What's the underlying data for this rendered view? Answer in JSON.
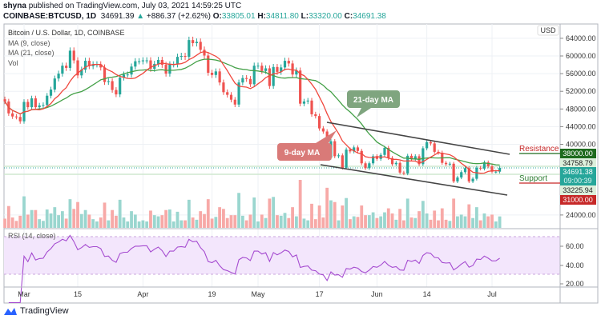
{
  "header": {
    "author": "shyna",
    "published_text": "published on TradingView.com, July 03, 2021 14:59:25 UTC",
    "symbol": "COINBASE:BTCUSD, 1D",
    "last": "34691.39",
    "change": "+886.37 (+2.62%)",
    "o_label": "O:",
    "o": "33805.01",
    "h_label": "H:",
    "h": "34811.80",
    "l_label": "L:",
    "l": "33320.00",
    "c_label": "C:",
    "c": "34691.38"
  },
  "legend": {
    "title": "Bitcoin / U.S. Dollar, 1D, COINBASE",
    "ma9": "MA (9, close)",
    "ma21": "MA (21, close)",
    "vol": "Vol"
  },
  "annotations": {
    "ma21": "21-day MA",
    "ma9": "9-day MA",
    "resistance": "Resistance",
    "support": "Support"
  },
  "price_labels": {
    "currency": "USD",
    "resistance_level": "38000.00",
    "ma21_value": "34758.79",
    "last_price": "34691.38",
    "countdown": "09:00:39",
    "ma9_value": "33225.94",
    "support_level": "31000.00"
  },
  "rsi": {
    "title": "RSI (14, close)",
    "ticks": [
      "60.00",
      "40.00",
      "20.00"
    ]
  },
  "brand": "TradingView",
  "colors": {
    "up": "#26a69a",
    "down": "#ef5350",
    "ma9": "#f0483e",
    "ma21": "#43a047",
    "rsi": "#a54bd0",
    "resistance": "#1e6b1e",
    "support": "#c62828"
  },
  "chart_data": {
    "type": "candlestick",
    "title": "Bitcoin / U.S. Dollar, 1D, COINBASE",
    "start_date": "2021-02-24",
    "end_date": "2021-07-03",
    "y_ticks": [
      64000,
      60000,
      56000,
      52000,
      48000,
      44000,
      40000,
      24000
    ],
    "x_ticks": [
      "Mar",
      "15",
      "Apr",
      "19",
      "May",
      "17",
      "Jun",
      "14",
      "Jul"
    ],
    "x_tick_dates": [
      "2021-03-01",
      "2021-03-15",
      "2021-04-01",
      "2021-04-19",
      "2021-05-01",
      "2021-05-17",
      "2021-06-01",
      "2021-06-14",
      "2021-07-01"
    ],
    "ylim": [
      22000,
      66000
    ],
    "grid": true,
    "closes": [
      49700,
      47000,
      46300,
      46200,
      45200,
      49600,
      48400,
      50400,
      48400,
      48800,
      48900,
      51000,
      52400,
      54900,
      56000,
      57800,
      57300,
      61200,
      59000,
      55600,
      56900,
      58900,
      57700,
      58100,
      58100,
      57400,
      54100,
      54300,
      52300,
      51300,
      55100,
      55800,
      55800,
      57600,
      58800,
      58800,
      59000,
      59000,
      57100,
      58200,
      59100,
      58000,
      56000,
      58100,
      58100,
      59800,
      60000,
      59800,
      63600,
      62900,
      63200,
      61400,
      60100,
      56200,
      55700,
      56500,
      54000,
      51800,
      51200,
      50100,
      49000,
      54000,
      55000,
      54800,
      53600,
      57800,
      57800,
      56600,
      57200,
      53200,
      57500,
      56400,
      57400,
      58900,
      58300,
      55800,
      56700,
      49200,
      49700,
      49900,
      46800,
      46400,
      43600,
      42900,
      37000,
      40700,
      37300,
      37500,
      34700,
      38800,
      38400,
      39300,
      38500,
      35700,
      34600,
      35700,
      37300,
      36700,
      37600,
      39200,
      36900,
      35500,
      35800,
      33600,
      33400,
      37400,
      36700,
      37300,
      35500,
      39100,
      40500,
      40200,
      38300,
      38100,
      35800,
      35500,
      35600,
      31600,
      32500,
      33700,
      34600,
      31600,
      32200,
      34700,
      34500,
      35900,
      35000,
      33800,
      33805,
      34691
    ],
    "indicators": [
      "MA (9, close)",
      "MA (21, close)",
      "Vol",
      "RSI (14, close)"
    ],
    "trend_channel": {
      "upper": [
        [
          "2021-05-19",
          45000
        ],
        [
          "2021-07-06",
          38000
        ]
      ],
      "lower": [
        [
          "2021-05-17",
          35500
        ],
        [
          "2021-07-05",
          29000
        ]
      ]
    },
    "horizontal_levels": {
      "resistance": 38000,
      "support": 31000
    },
    "rsi_levels": {
      "upper": 70,
      "lower": 30,
      "ylim": [
        15,
        78
      ]
    }
  }
}
